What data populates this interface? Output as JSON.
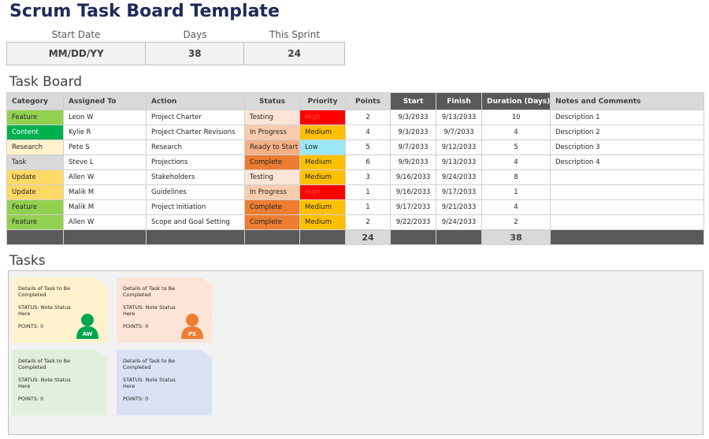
{
  "title": "Scrum Task Board Template",
  "summary": {
    "labels": [
      "Start Date",
      "Days",
      "This Sprint"
    ],
    "values": [
      "MM/DD/YY",
      38,
      24
    ]
  },
  "task_board": {
    "title": "Task Board",
    "columns": [
      "Category",
      "Assigned To",
      "Action",
      "Status",
      "Priority",
      "Points",
      "Start",
      "Finish",
      "Duration (Days)",
      "Notes and Comments"
    ],
    "rows": [
      {
        "category": "Feature",
        "category_color": "#92d050",
        "assigned_to": "Leon W",
        "action": "Project Charter",
        "status": "Testing",
        "status_color": "#fce4d6",
        "priority": "High",
        "priority_color": "#ff0000",
        "points": 2,
        "start": "9/3/2033",
        "finish": "9/13/2033",
        "duration": 10,
        "notes": "Description 1"
      },
      {
        "category": "Content",
        "category_color": "#00b050",
        "assigned_to": "Kylie R",
        "action": "Project Charter Revisions",
        "status": "In Progress",
        "status_color": "#f8cbad",
        "priority": "Medium",
        "priority_color": "#ffc000",
        "points": 4,
        "start": "9/3/2033",
        "finish": "9/7/2033",
        "duration": 4,
        "notes": "Description 2"
      },
      {
        "category": "Research",
        "category_color": "#fff2cc",
        "assigned_to": "Pete S",
        "action": "Research",
        "status": "Ready to Start",
        "status_color": "#f4b084",
        "priority": "Low",
        "priority_color": "#9be7f7",
        "points": 5,
        "start": "9/7/2033",
        "finish": "9/12/2033",
        "duration": 5,
        "notes": "Description 3"
      },
      {
        "category": "Task",
        "category_color": "#d9d9d9",
        "assigned_to": "Steve L",
        "action": "Projections",
        "status": "Complete",
        "status_color": "#ed7d31",
        "priority": "Medium",
        "priority_color": "#ffc000",
        "points": 6,
        "start": "9/9/2033",
        "finish": "9/13/2033",
        "duration": 4,
        "notes": "Description 4"
      },
      {
        "category": "Update",
        "category_color": "#ffd966",
        "assigned_to": "Allen W",
        "action": "Stakeholders",
        "status": "Testing",
        "status_color": "#fce4d6",
        "priority": "Medium",
        "priority_color": "#ffc000",
        "points": 3,
        "start": "9/16/2033",
        "finish": "9/24/2033",
        "duration": 8
      },
      {
        "category": "Update",
        "category_color": "#ffd966",
        "assigned_to": "Malik M",
        "action": "Guidelines",
        "status": "In Progress",
        "status_color": "#f8cbad",
        "priority": "High",
        "priority_color": "#ff0000",
        "points": 1,
        "start": "9/16/2033",
        "finish": "9/17/2033",
        "duration": 1
      },
      {
        "category": "Feature",
        "category_color": "#92d050",
        "assigned_to": "Malik M",
        "action": "Project Initiation",
        "status": "Complete",
        "status_color": "#ed7d31",
        "priority": "Medium",
        "priority_color": "#ffc000",
        "points": 1,
        "start": "9/17/2033",
        "finish": "9/21/2033",
        "duration": 4
      },
      {
        "category": "Feature",
        "category_color": "#92d050",
        "assigned_to": "Allen W",
        "action": "Scope and Goal Setting",
        "status": "Complete",
        "status_color": "#ed7d31",
        "priority": "Medium",
        "priority_color": "#ffc000",
        "points": 2,
        "start": "9/22/2033",
        "finish": "9/24/2033",
        "duration": 2
      }
    ],
    "totals": {
      "points": 24,
      "duration": 38
    }
  },
  "tasks": {
    "title": "Tasks",
    "cards": [
      {
        "details": "Details of Task to Be Completed",
        "status": "STATUS: Note Status Here",
        "points": "POINTS: 0",
        "color": "#fff2cc",
        "avatar": "AW",
        "avatar_color": "#00a651"
      },
      {
        "details": "Details of Task to Be Completed",
        "status": "STATUS: Note Status Here",
        "points": "POINTS: 0",
        "color": "#fce4d6",
        "avatar": "PS",
        "avatar_color": "#ed7d31"
      },
      {
        "details": "Details of Task to Be Completed",
        "status": "STATUS: Note Status Here",
        "points": "POINTS: 0",
        "color": "#e2efda"
      },
      {
        "details": "Details of Task to Be Completed",
        "status": "STATUS: Note Status Here",
        "points": "POINTS: 0",
        "color": "#d9e1f2"
      }
    ]
  }
}
